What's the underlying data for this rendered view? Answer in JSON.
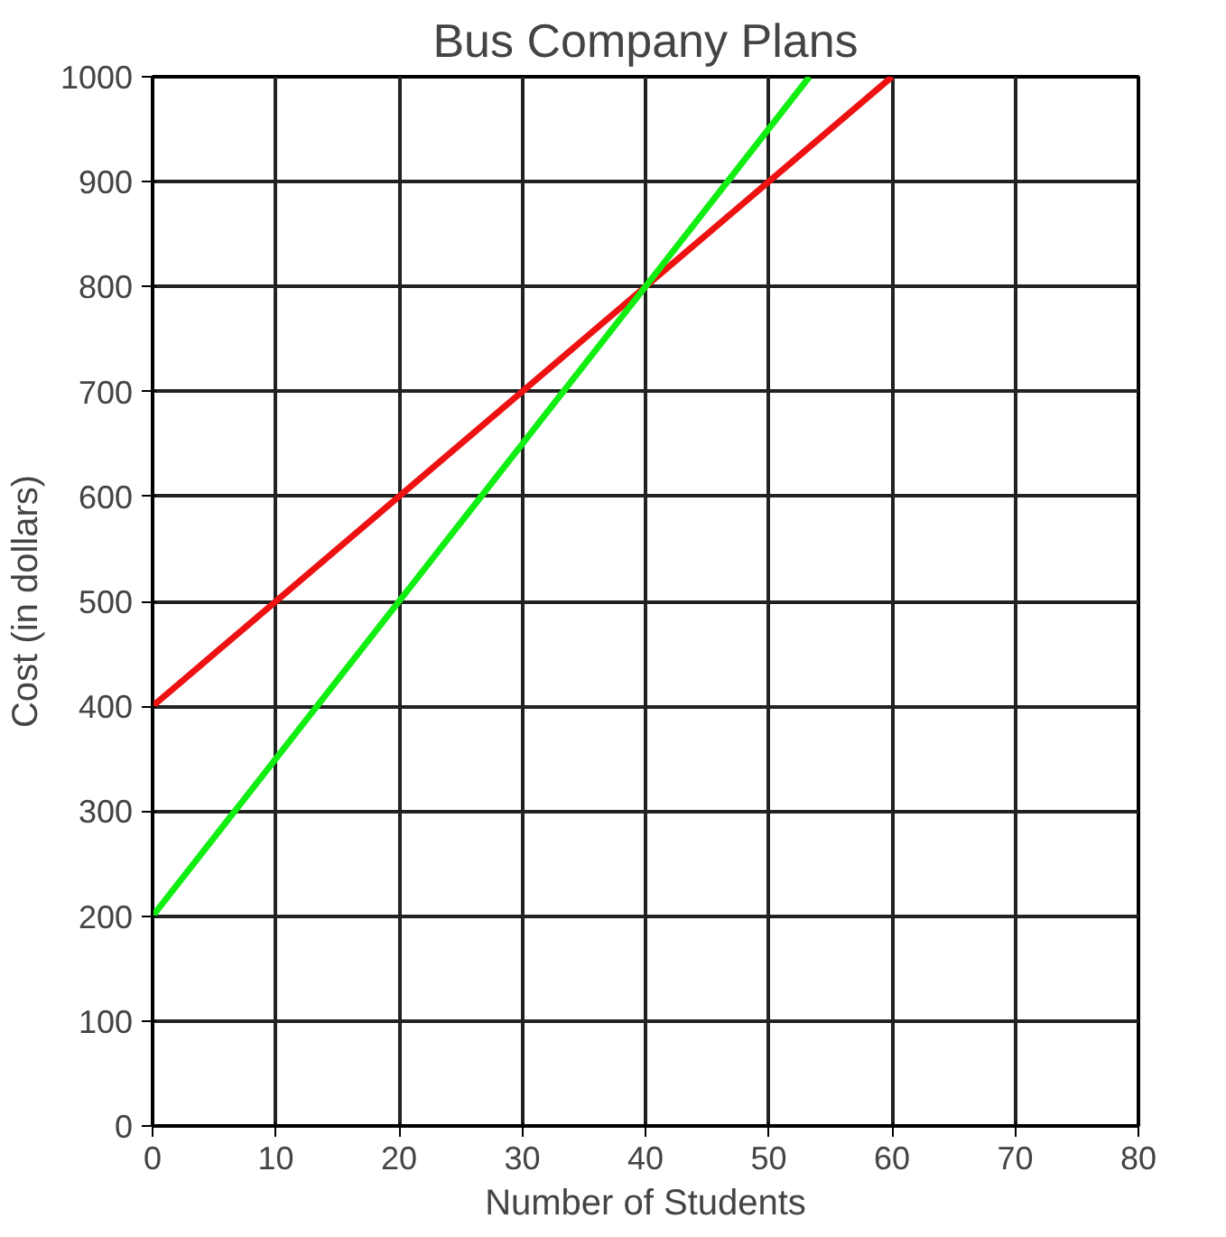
{
  "chart_data": {
    "type": "line",
    "title": "Bus Company Plans",
    "xlabel": "Number of Students",
    "ylabel": "Cost (in dollars)",
    "xlim": [
      0,
      80
    ],
    "ylim": [
      0,
      1000
    ],
    "xticks": [
      0,
      10,
      20,
      30,
      40,
      50,
      60,
      70,
      80
    ],
    "yticks": [
      0,
      100,
      200,
      300,
      400,
      500,
      600,
      700,
      800,
      900,
      1000
    ],
    "grid": true,
    "marker": "none",
    "line_style": "solid",
    "series": [
      {
        "color": "#ee1111",
        "x": [
          0,
          40,
          60
        ],
        "values": [
          400,
          800,
          1000
        ]
      },
      {
        "color": "#11ee11",
        "x": [
          0,
          40,
          53.3
        ],
        "values": [
          200,
          800,
          1000
        ]
      }
    ]
  }
}
